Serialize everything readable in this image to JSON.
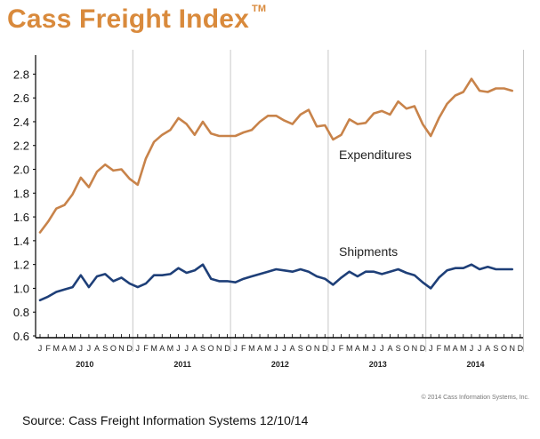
{
  "title": "Cass Freight Index",
  "trademark": "TM",
  "copyright": "© 2014 Cass Information Systems, Inc.",
  "source": "Source: Cass Freight Information Systems 12/10/14",
  "colors": {
    "title": "#d98a3c",
    "expenditures": "#c8834a",
    "shipments": "#1e3f78",
    "grid": "#c8c8c8",
    "axis": "#000000"
  },
  "chart_data": {
    "type": "line",
    "title": "Cass Freight Index",
    "xlabel": "",
    "ylabel": "",
    "ylim": [
      0.6,
      2.9
    ],
    "y_ticks": [
      0.6,
      0.8,
      1.0,
      1.2,
      1.4,
      1.6,
      1.8,
      2.0,
      2.2,
      2.4,
      2.6,
      2.8
    ],
    "grid": "vertical lines at year boundaries",
    "years": [
      "2010",
      "2011",
      "2012",
      "2013",
      "2014"
    ],
    "month_labels": [
      "J",
      "F",
      "M",
      "A",
      "M",
      "J",
      "J",
      "A",
      "S",
      "O",
      "N",
      "D"
    ],
    "x": [
      "2010-01",
      "2010-02",
      "2010-03",
      "2010-04",
      "2010-05",
      "2010-06",
      "2010-07",
      "2010-08",
      "2010-09",
      "2010-10",
      "2010-11",
      "2010-12",
      "2011-01",
      "2011-02",
      "2011-03",
      "2011-04",
      "2011-05",
      "2011-06",
      "2011-07",
      "2011-08",
      "2011-09",
      "2011-10",
      "2011-11",
      "2011-12",
      "2012-01",
      "2012-02",
      "2012-03",
      "2012-04",
      "2012-05",
      "2012-06",
      "2012-07",
      "2012-08",
      "2012-09",
      "2012-10",
      "2012-11",
      "2012-12",
      "2013-01",
      "2013-02",
      "2013-03",
      "2013-04",
      "2013-05",
      "2013-06",
      "2013-07",
      "2013-08",
      "2013-09",
      "2013-10",
      "2013-11",
      "2013-12",
      "2014-01",
      "2014-02",
      "2014-03",
      "2014-04",
      "2014-05",
      "2014-06",
      "2014-07",
      "2014-08",
      "2014-09",
      "2014-10",
      "2014-11"
    ],
    "series": [
      {
        "name": "Expenditures",
        "values": [
          1.47,
          1.56,
          1.67,
          1.7,
          1.79,
          1.93,
          1.85,
          1.98,
          2.04,
          1.99,
          2.0,
          1.92,
          1.87,
          2.09,
          2.23,
          2.29,
          2.33,
          2.43,
          2.38,
          2.29,
          2.4,
          2.3,
          2.28,
          2.28,
          2.28,
          2.31,
          2.33,
          2.4,
          2.45,
          2.45,
          2.41,
          2.38,
          2.46,
          2.5,
          2.36,
          2.37,
          2.25,
          2.29,
          2.42,
          2.38,
          2.39,
          2.47,
          2.49,
          2.46,
          2.57,
          2.51,
          2.53,
          2.38,
          2.28,
          2.43,
          2.55,
          2.62,
          2.65,
          2.76,
          2.66,
          2.65,
          2.68,
          2.68,
          2.66
        ],
        "label": "Expenditures"
      },
      {
        "name": "Shipments",
        "values": [
          0.9,
          0.93,
          0.97,
          0.99,
          1.01,
          1.11,
          1.01,
          1.1,
          1.12,
          1.06,
          1.09,
          1.04,
          1.01,
          1.04,
          1.11,
          1.11,
          1.12,
          1.17,
          1.13,
          1.15,
          1.2,
          1.08,
          1.06,
          1.06,
          1.05,
          1.08,
          1.1,
          1.12,
          1.14,
          1.16,
          1.15,
          1.14,
          1.16,
          1.14,
          1.1,
          1.08,
          1.03,
          1.09,
          1.14,
          1.1,
          1.14,
          1.14,
          1.12,
          1.14,
          1.16,
          1.13,
          1.11,
          1.05,
          1.0,
          1.09,
          1.15,
          1.17,
          1.17,
          1.2,
          1.16,
          1.18,
          1.16,
          1.16,
          1.16
        ],
        "label": "Shipments"
      }
    ]
  }
}
